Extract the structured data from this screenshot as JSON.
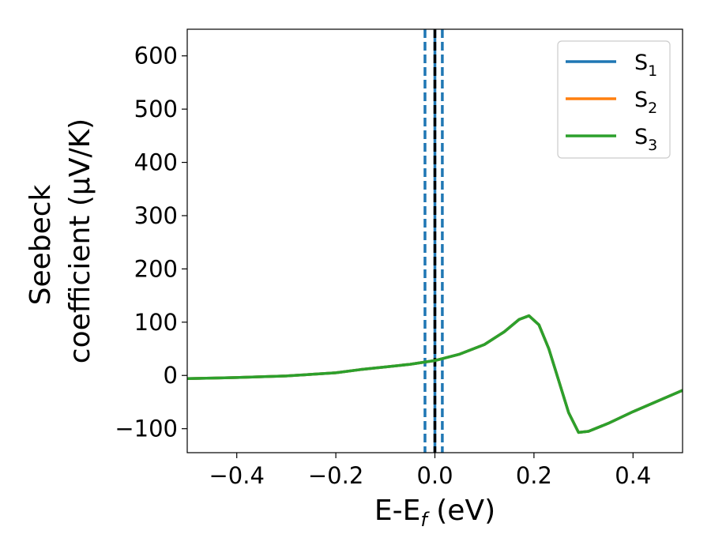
{
  "chart_data": {
    "type": "line",
    "title": "",
    "xlabel": {
      "main": "E-E",
      "sub": "f",
      "tail": " (eV)"
    },
    "ylabel": {
      "line1": "Seebeck",
      "line2": "coefficient  (μV/K)"
    },
    "xlim": [
      -0.5,
      0.5
    ],
    "ylim": [
      -145,
      650
    ],
    "x_ticks": [
      -0.4,
      -0.2,
      0.0,
      0.2,
      0.4
    ],
    "x_tick_labels": [
      "−0.4",
      "−0.2",
      "0.0",
      "0.2",
      "0.4"
    ],
    "y_ticks": [
      -100,
      0,
      100,
      200,
      300,
      400,
      500,
      600
    ],
    "y_tick_labels": [
      "−100",
      "0",
      "100",
      "200",
      "300",
      "400",
      "500",
      "600"
    ],
    "grid": false,
    "legend_position": "top-right",
    "vertical_lines": [
      {
        "x": -0.02,
        "color": "#1f77b4",
        "style": "dashed"
      },
      {
        "x": 0.0,
        "color": "#1f77b4",
        "style": "solid"
      },
      {
        "x": 0.0,
        "color": "#000000",
        "style": "dashed"
      },
      {
        "x": 0.015,
        "color": "#1f77b4",
        "style": "dashed"
      }
    ],
    "series": [
      {
        "name": "S",
        "sub": "1",
        "color": "#1f77b4",
        "x": [
          -0.5,
          -0.45,
          -0.4,
          -0.35,
          -0.3,
          -0.25,
          -0.2,
          -0.15,
          -0.1,
          -0.05,
          0.0,
          0.05,
          0.1,
          0.14,
          0.17,
          0.19,
          0.21,
          0.23,
          0.25,
          0.27,
          0.29,
          0.31,
          0.35,
          0.4,
          0.45,
          0.5
        ],
        "y": [
          -6,
          -5,
          -4,
          -2.5,
          -1,
          2,
          5,
          11,
          16,
          21,
          28,
          40,
          58,
          82,
          105,
          112,
          95,
          50,
          -10,
          -70,
          -107,
          -105,
          -90,
          -68,
          -48,
          -28
        ]
      },
      {
        "name": "S",
        "sub": "2",
        "color": "#ff7f0e",
        "x": [
          -0.5,
          -0.45,
          -0.4,
          -0.35,
          -0.3,
          -0.25,
          -0.2,
          -0.15,
          -0.1,
          -0.05,
          0.0,
          0.05,
          0.1,
          0.14,
          0.17,
          0.19,
          0.21,
          0.23,
          0.25,
          0.27,
          0.29,
          0.31,
          0.35,
          0.4,
          0.45,
          0.5
        ],
        "y": [
          -6,
          -5,
          -4,
          -2.5,
          -1,
          2,
          5,
          11,
          16,
          21,
          28,
          40,
          58,
          82,
          105,
          112,
          95,
          50,
          -10,
          -70,
          -107,
          -105,
          -90,
          -68,
          -48,
          -28
        ]
      },
      {
        "name": "S",
        "sub": "3",
        "color": "#2ca02c",
        "x": [
          -0.5,
          -0.45,
          -0.4,
          -0.35,
          -0.3,
          -0.25,
          -0.2,
          -0.15,
          -0.1,
          -0.05,
          0.0,
          0.05,
          0.1,
          0.14,
          0.17,
          0.19,
          0.21,
          0.23,
          0.25,
          0.27,
          0.29,
          0.31,
          0.35,
          0.4,
          0.45,
          0.5
        ],
        "y": [
          -6,
          -5,
          -4,
          -2.5,
          -1,
          2,
          5,
          11,
          16,
          21,
          28,
          40,
          58,
          82,
          105,
          112,
          95,
          50,
          -10,
          -70,
          -107,
          -105,
          -90,
          -68,
          -48,
          -28
        ]
      }
    ]
  }
}
